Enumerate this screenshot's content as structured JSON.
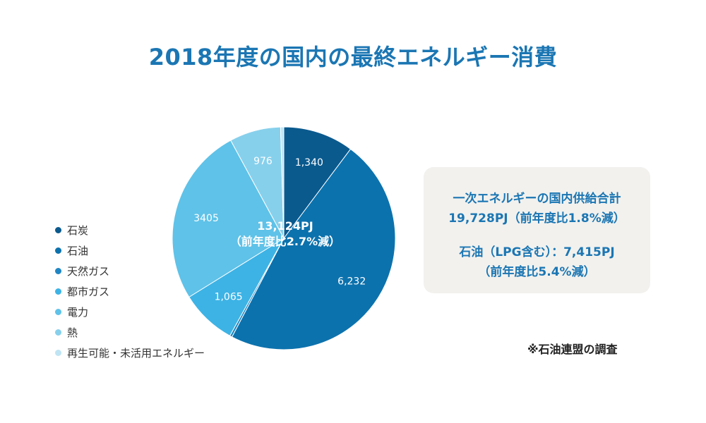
{
  "title": "2018年度の国内の最終エネルギー消費",
  "chart_data": {
    "type": "pie",
    "title": "2018年度の国内の最終エネルギー消費",
    "center_label": [
      "13,124PJ",
      "（前年度比2.7%減）"
    ],
    "slices": [
      {
        "name": "石炭",
        "value": 1340,
        "label": "1,340",
        "color": "#0a5a8e"
      },
      {
        "name": "石油",
        "value": 6232,
        "label": "6,232",
        "color": "#0c72ad"
      },
      {
        "name": "天然ガス",
        "value": 45,
        "label": "",
        "color": "#1f86c3"
      },
      {
        "name": "都市ガス",
        "value": 1065,
        "label": "1,065",
        "color": "#3db3e5"
      },
      {
        "name": "電力",
        "value": 3405,
        "label": "3405",
        "color": "#5fc2e8"
      },
      {
        "name": "熱",
        "value": 976,
        "label": "976",
        "color": "#87d0ec"
      },
      {
        "name": "再生可能・未活用エネルギー",
        "value": 61,
        "label": "",
        "color": "#bfe4f4"
      }
    ],
    "legend_position": "left"
  },
  "info_box": {
    "lines": [
      "一次エネルギーの国内供給合計",
      "19,728PJ（前年度比1.8%減）",
      "石油（LPG含む）：7,415PJ",
      "（前年度比5.4%減）"
    ]
  },
  "note": "※石油連盟の調査"
}
